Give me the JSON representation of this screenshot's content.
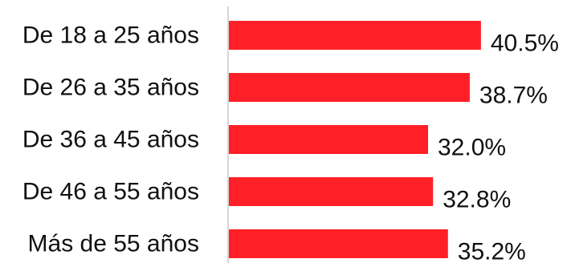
{
  "chart_data": {
    "type": "bar",
    "orientation": "horizontal",
    "categories": [
      "De 18 a 25 años",
      "De 26 a 35 años",
      "De 36 a 45 años",
      "De 46 a 55 años",
      "Más de 55 años"
    ],
    "values": [
      40.5,
      38.7,
      32.0,
      32.8,
      35.2
    ],
    "value_labels": [
      "40.5%",
      "38.7%",
      "32.0%",
      "32.8%",
      "35.2%"
    ],
    "unit": "%",
    "title": "",
    "xlabel": "",
    "ylabel": "",
    "xlim": [
      0,
      45
    ],
    "grid": false,
    "legend": "none",
    "colors": {
      "bar": "#ff1f26",
      "axis": "#c8c8c8",
      "text": "#111111"
    }
  }
}
